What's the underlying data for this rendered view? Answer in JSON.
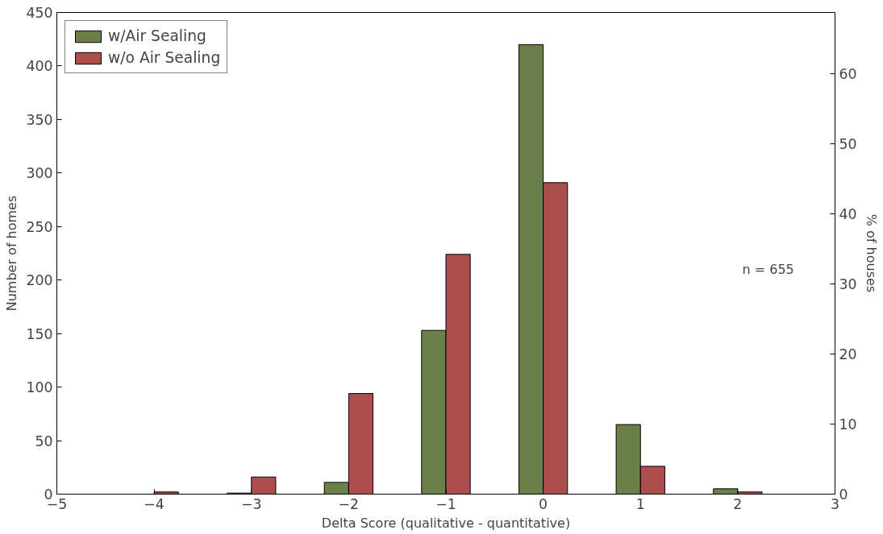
{
  "chart_data": {
    "type": "bar",
    "xlabel": "Delta Score (qualitative - quantitative)",
    "ylabel": "Number of homes",
    "y2label": "% of houses",
    "x": [
      -4,
      -3,
      -2,
      -1,
      0,
      1,
      2
    ],
    "series": [
      {
        "name": "w/Air Sealing",
        "color": "#6b7f48",
        "values": [
          null,
          1,
          11,
          153,
          420,
          65,
          5
        ]
      },
      {
        "name": "w/o Air Sealing",
        "color": "#ac4e4e",
        "values": [
          2,
          16,
          94,
          224,
          291,
          26,
          2
        ]
      }
    ],
    "xlim": [
      -5,
      3
    ],
    "xticks": [
      {
        "value": -5,
        "label": "−5"
      },
      {
        "value": -4,
        "label": "−4"
      },
      {
        "value": -3,
        "label": "−3"
      },
      {
        "value": -2,
        "label": "−2"
      },
      {
        "value": -1,
        "label": "−1"
      },
      0,
      1,
      2,
      3
    ],
    "ylim": [
      0,
      450
    ],
    "yticks": [
      0,
      50,
      100,
      150,
      200,
      250,
      300,
      350,
      400,
      450
    ],
    "y2lim": [
      0,
      68.7
    ],
    "y2ticks": [
      0,
      10,
      20,
      30,
      40,
      50,
      60
    ],
    "annotations": [
      "n = 655"
    ],
    "grid": false,
    "legend": "top left"
  }
}
